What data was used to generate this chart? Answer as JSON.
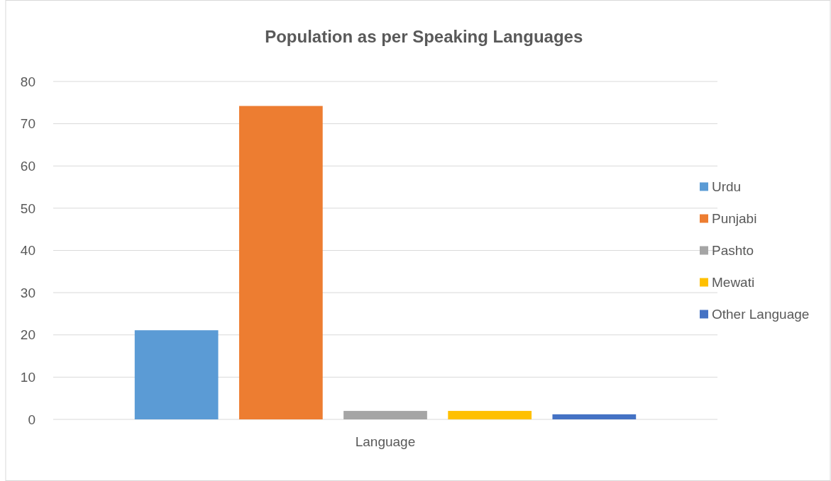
{
  "chart_data": {
    "type": "bar",
    "title": "Population as per Speaking Languages",
    "categories": [
      "Language"
    ],
    "series": [
      {
        "name": "Urdu",
        "color": "#5b9bd5",
        "values": [
          21.1
        ]
      },
      {
        "name": "Punjabi",
        "color": "#ed7d31",
        "values": [
          74.2
        ]
      },
      {
        "name": "Pashto",
        "color": "#a5a5a5",
        "values": [
          2
        ]
      },
      {
        "name": "Mewati",
        "color": "#ffc000",
        "values": [
          2
        ]
      },
      {
        "name": "Other Language",
        "color": "#4472c4",
        "values": [
          1.2
        ]
      }
    ],
    "ylim": [
      0,
      80
    ],
    "yticks": [
      0,
      10,
      20,
      30,
      40,
      50,
      60,
      70,
      80
    ],
    "grid": "y",
    "legend": "right"
  }
}
